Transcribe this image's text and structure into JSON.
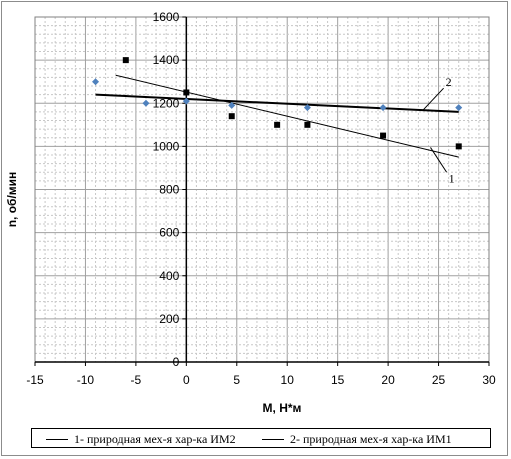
{
  "chart_data": {
    "type": "scatter",
    "xlabel": "M, Н*м",
    "ylabel": "n, об/мин",
    "xlim": [
      -15,
      30
    ],
    "ylim": [
      0,
      1600
    ],
    "xticks": [
      -15,
      -10,
      -5,
      0,
      5,
      10,
      15,
      20,
      25,
      30
    ],
    "yticks": [
      0,
      200,
      400,
      600,
      800,
      1000,
      1200,
      1400,
      1600
    ],
    "grid": true,
    "series": [
      {
        "name": "1-  природная мех-я хар-ка ИМ2",
        "marker": "square",
        "color": "#000000",
        "points": [
          [
            -6,
            1400
          ],
          [
            0,
            1250
          ],
          [
            4.5,
            1140
          ],
          [
            9,
            1100
          ],
          [
            12,
            1100
          ],
          [
            19.5,
            1050
          ],
          [
            27,
            1000
          ]
        ],
        "trendline": {
          "from": [
            -7,
            1330
          ],
          "to": [
            27,
            950
          ],
          "label": "1"
        }
      },
      {
        "name": "2- природная мех-я хар-ка ИМ1",
        "marker": "diamond",
        "color": "#4f81bd",
        "points": [
          [
            -9,
            1300
          ],
          [
            -4,
            1200
          ],
          [
            0,
            1210
          ],
          [
            4.5,
            1190
          ],
          [
            12,
            1180
          ],
          [
            19.5,
            1180
          ],
          [
            27,
            1180
          ]
        ],
        "trendline": {
          "from": [
            -9,
            1240
          ],
          "to": [
            27,
            1160
          ],
          "label": "2"
        }
      }
    ],
    "legend_position": "bottom"
  }
}
